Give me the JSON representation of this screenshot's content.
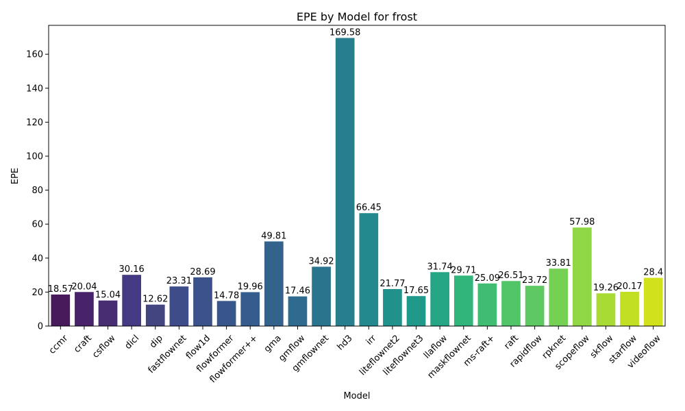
{
  "chart_data": {
    "type": "bar",
    "title": "EPE by Model for frost",
    "xlabel": "Model",
    "ylabel": "EPE",
    "ylim": [
      0,
      177
    ],
    "yticks": [
      0,
      20,
      40,
      60,
      80,
      100,
      120,
      140,
      160
    ],
    "grid": false,
    "categories": [
      "ccmr",
      "craft",
      "csflow",
      "dicl",
      "dip",
      "fastflownet",
      "flow1d",
      "flowformer",
      "flowformer++",
      "gma",
      "gmflow",
      "gmflownet",
      "hd3",
      "irr",
      "liteflownet2",
      "liteflownet3",
      "llaflow",
      "maskflownet",
      "ms-raft+",
      "raft",
      "rapidflow",
      "rpknet",
      "scopeflow",
      "skflow",
      "starflow",
      "videoflow"
    ],
    "values": [
      18.57,
      20.04,
      15.04,
      30.16,
      12.62,
      23.31,
      28.69,
      14.78,
      19.96,
      49.81,
      17.46,
      34.92,
      169.58,
      66.45,
      21.77,
      17.65,
      31.74,
      29.71,
      25.09,
      26.51,
      23.72,
      33.81,
      57.98,
      19.26,
      20.17,
      28.4
    ],
    "value_labels": [
      "18.57",
      "20.04",
      "15.04",
      "30.16",
      "12.62",
      "23.31",
      "28.69",
      "14.78",
      "19.96",
      "49.81",
      "17.46",
      "34.92",
      "169.58",
      "66.45",
      "21.77",
      "17.65",
      "31.74",
      "29.71",
      "25.09",
      "26.51",
      "23.72",
      "33.81",
      "57.98",
      "19.26",
      "20.17",
      "28.4"
    ],
    "colors": [
      "#481a5c",
      "#48226a",
      "#472d72",
      "#443a83",
      "#42457f",
      "#3e4c8a",
      "#3b528b",
      "#39568c",
      "#365c8d",
      "#33638d",
      "#2f6b8e",
      "#2b748e",
      "#277f8e",
      "#23898e",
      "#21918c",
      "#1f998a",
      "#25a584",
      "#31b57b",
      "#40bd72",
      "#52c569",
      "#5ec962",
      "#75d054",
      "#8fd744",
      "#a8db34",
      "#c2df23",
      "#d1e11c"
    ]
  }
}
